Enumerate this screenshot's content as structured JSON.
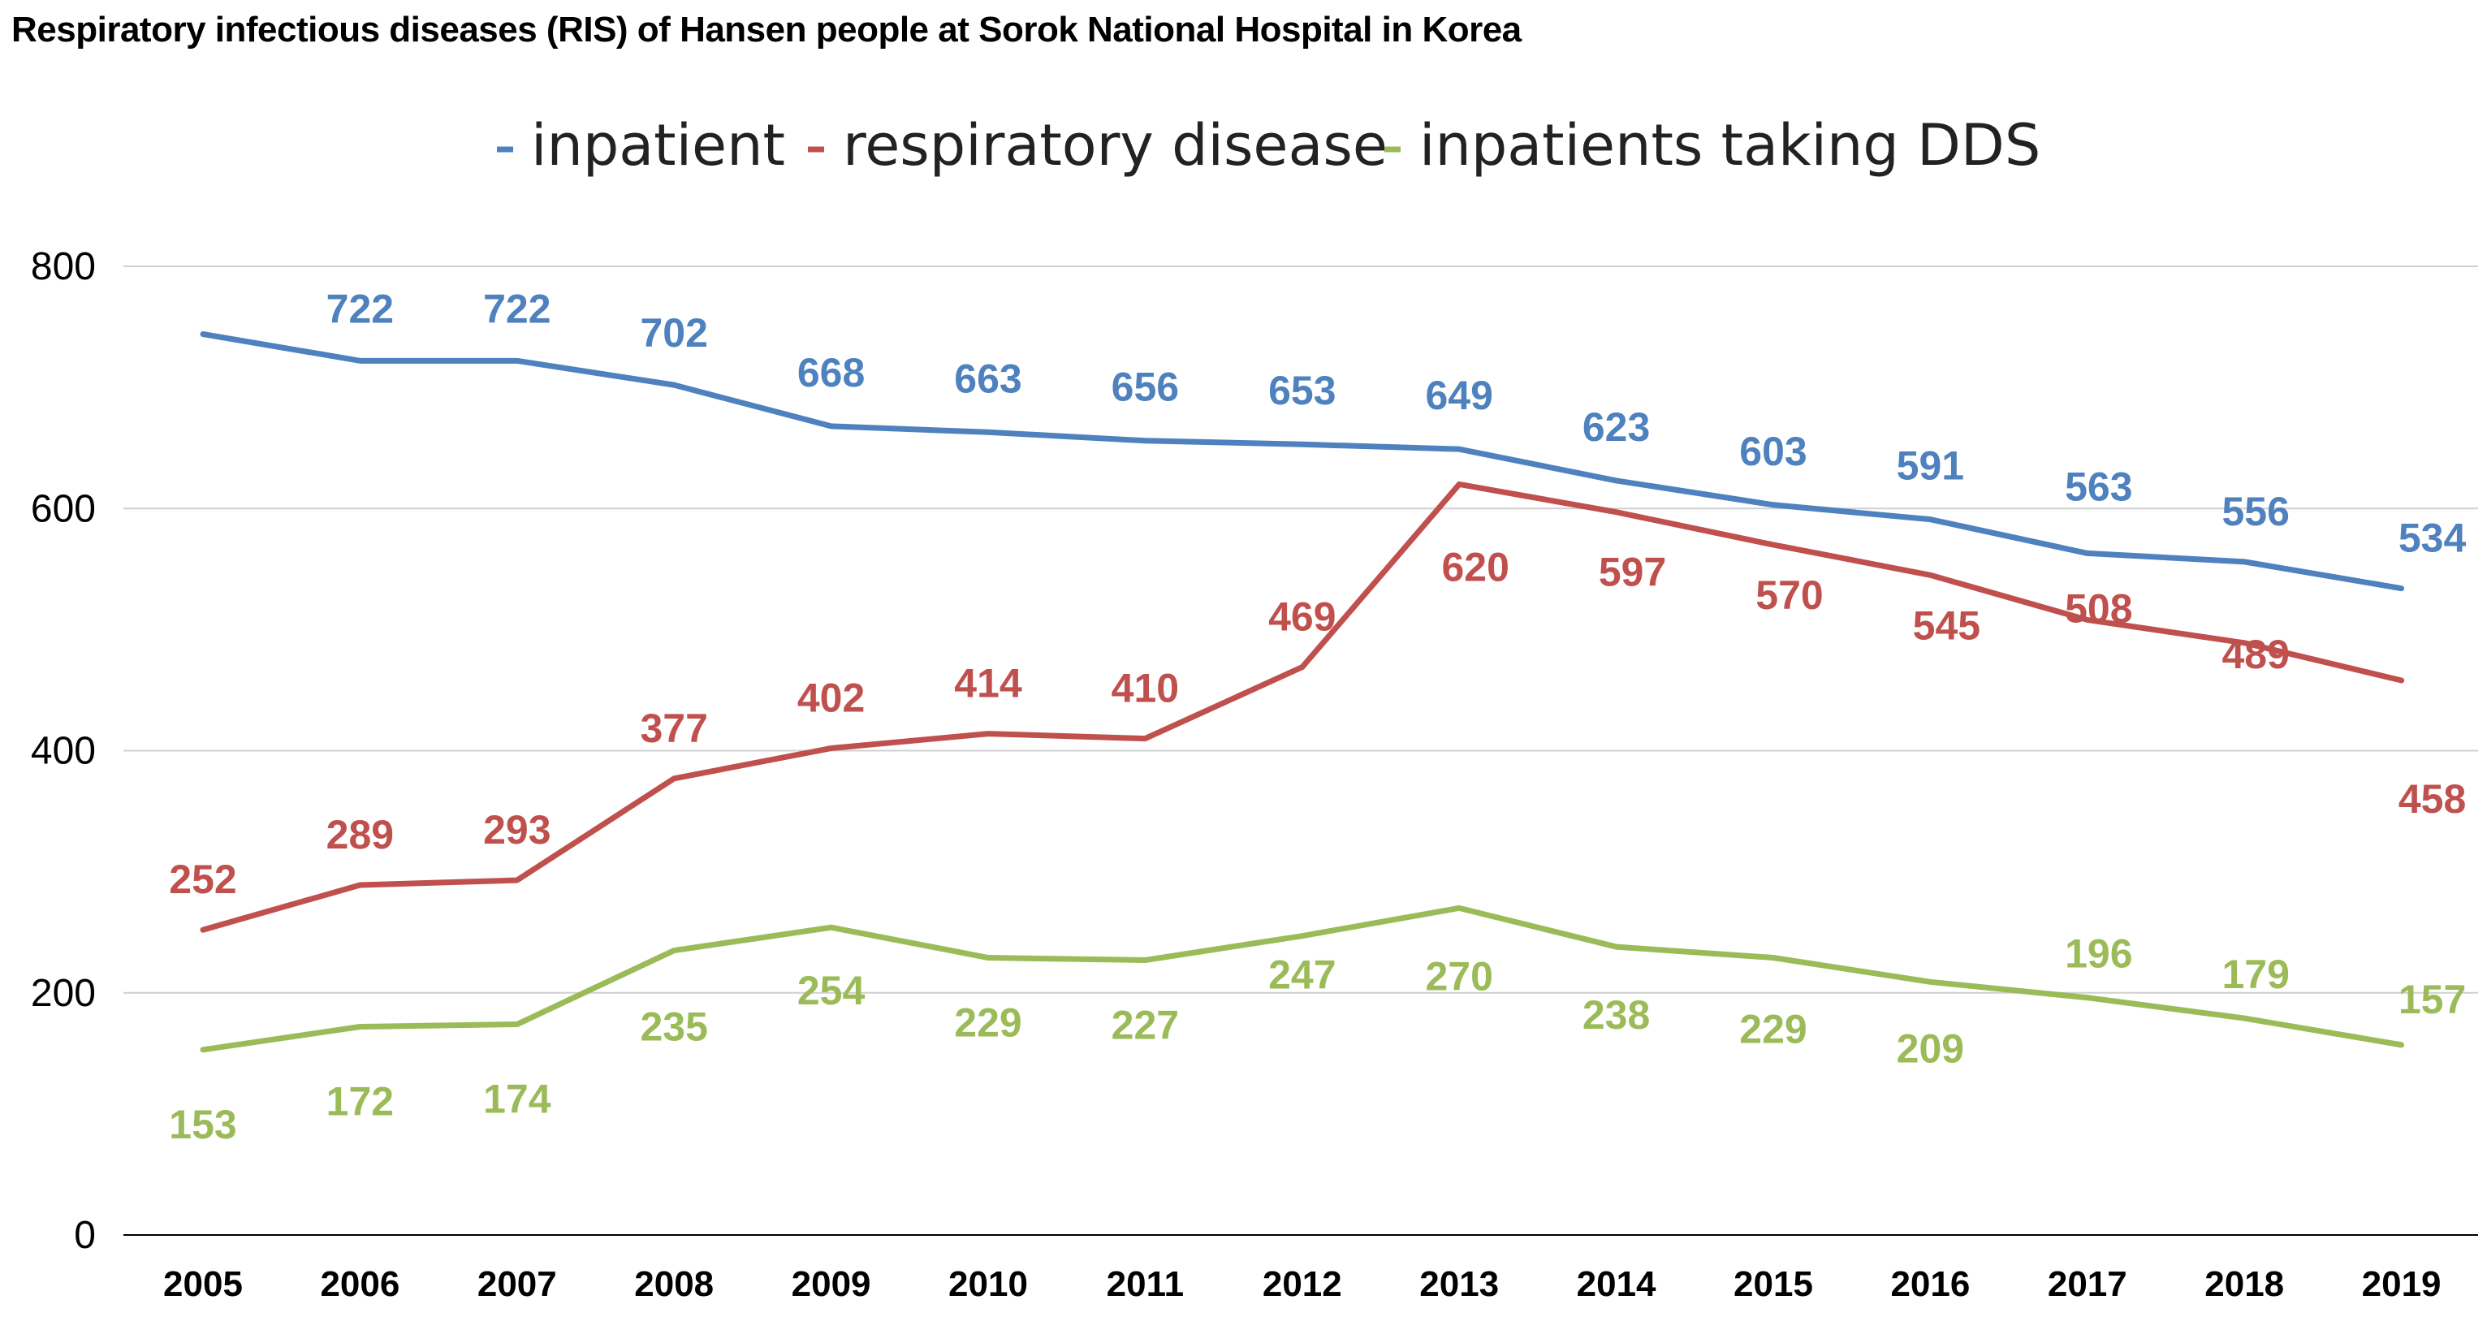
{
  "chart_data": {
    "type": "line",
    "title": "Respiratory infectious diseases (RIS) of Hansen people at Sorok National Hospital in Korea",
    "xlabel": "",
    "ylabel": "",
    "ylim": [
      0,
      800
    ],
    "yticks": [
      0,
      200,
      400,
      600,
      800
    ],
    "grid": true,
    "legend_position": "top",
    "categories": [
      "2005",
      "2006",
      "2007",
      "2008",
      "2009",
      "2010",
      "2011",
      "2012",
      "2013",
      "2014",
      "2015",
      "2016",
      "2017",
      "2018",
      "2019"
    ],
    "series": [
      {
        "name": "inpatient",
        "color": "#4e81bd",
        "values": [
          744,
          722,
          722,
          702,
          668,
          663,
          656,
          653,
          649,
          623,
          603,
          591,
          563,
          556,
          534
        ],
        "labels": [
          "",
          "722",
          "722",
          "702",
          "668",
          "663",
          "656",
          "653",
          "649",
          "623",
          "603",
          "591",
          "563",
          "556",
          "534"
        ]
      },
      {
        "name": "respiratory disease",
        "color": "#c0504d",
        "values": [
          252,
          289,
          293,
          377,
          402,
          414,
          410,
          469,
          620,
          597,
          570,
          545,
          508,
          489,
          458
        ],
        "labels": [
          "252",
          "289",
          "293",
          "377",
          "402",
          "414",
          "410",
          "469",
          "620",
          "597",
          "570",
          "545",
          "508",
          "489",
          "458"
        ]
      },
      {
        "name": "inpatients taking DDS",
        "color": "#9bbb59",
        "values": [
          153,
          172,
          174,
          235,
          254,
          229,
          227,
          247,
          270,
          238,
          229,
          209,
          196,
          179,
          157
        ],
        "labels": [
          "153",
          "172",
          "174",
          "235",
          "254",
          "229",
          "227",
          "247",
          "270",
          "238",
          "229",
          "209",
          "196",
          "179",
          "157"
        ]
      }
    ]
  }
}
